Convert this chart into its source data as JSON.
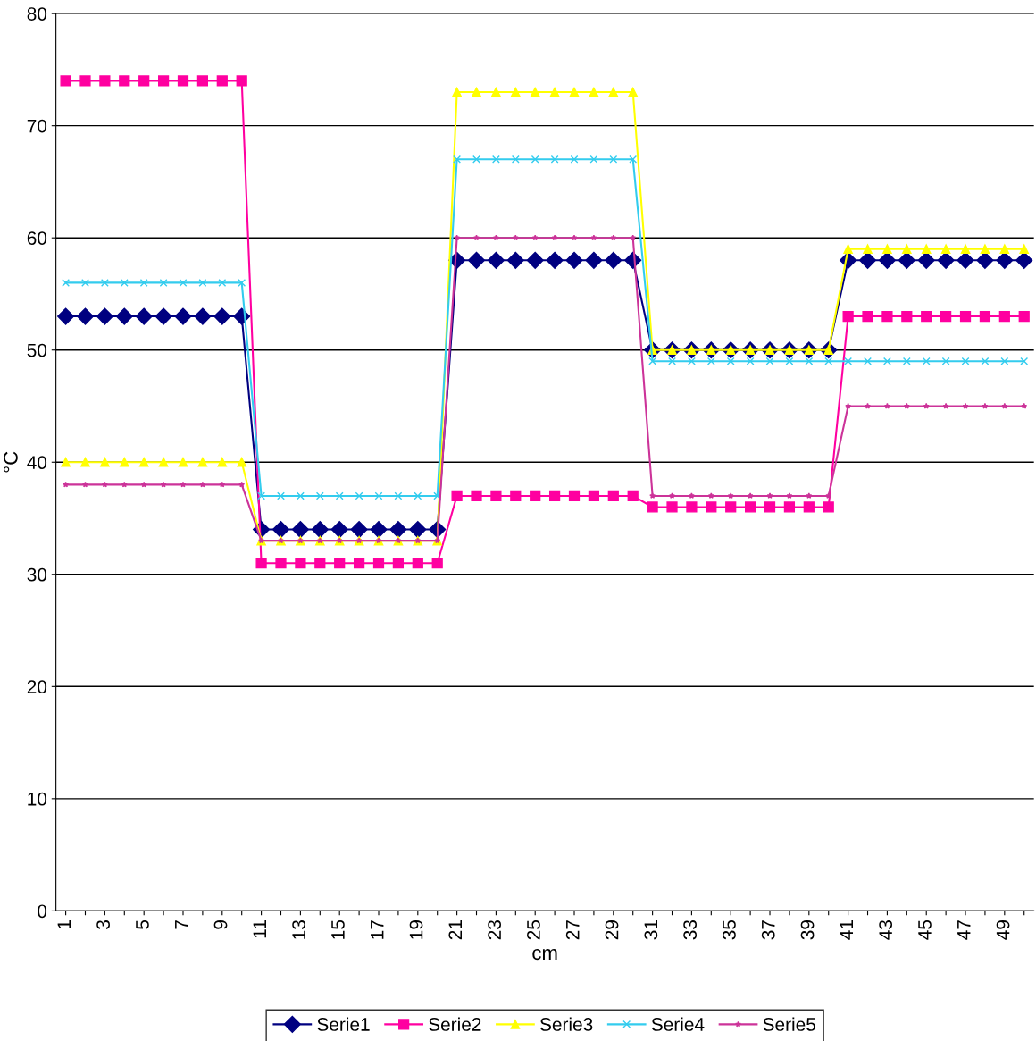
{
  "chart_data": {
    "type": "line",
    "xlabel": "cm",
    "ylabel": "°C",
    "categories": [
      "1",
      null,
      "3",
      null,
      "5",
      null,
      "7",
      null,
      "9",
      null,
      "11",
      null,
      "13",
      null,
      "15",
      null,
      "17",
      null,
      "19",
      null,
      "21",
      null,
      "23",
      null,
      "25",
      null,
      "27",
      null,
      "29",
      null,
      "31",
      null,
      "33",
      null,
      "35",
      null,
      "37",
      null,
      "39",
      null,
      "41",
      null,
      "43",
      null,
      "45",
      null,
      "47",
      null,
      "49",
      null
    ],
    "series": [
      {
        "name": "Serie1",
        "color": "#000080",
        "marker": "diamond",
        "values": [
          53,
          53,
          53,
          53,
          53,
          53,
          53,
          53,
          53,
          53,
          34,
          34,
          34,
          34,
          34,
          34,
          34,
          34,
          34,
          34,
          58,
          58,
          58,
          58,
          58,
          58,
          58,
          58,
          58,
          58,
          50,
          50,
          50,
          50,
          50,
          50,
          50,
          50,
          50,
          50,
          58,
          58,
          58,
          58,
          58,
          58,
          58,
          58,
          58,
          58
        ]
      },
      {
        "name": "Serie2",
        "color": "#ff00a0",
        "marker": "square",
        "values": [
          74,
          74,
          74,
          74,
          74,
          74,
          74,
          74,
          74,
          74,
          31,
          31,
          31,
          31,
          31,
          31,
          31,
          31,
          31,
          31,
          37,
          37,
          37,
          37,
          37,
          37,
          37,
          37,
          37,
          37,
          36,
          36,
          36,
          36,
          36,
          36,
          36,
          36,
          36,
          36,
          53,
          53,
          53,
          53,
          53,
          53,
          53,
          53,
          53,
          53
        ]
      },
      {
        "name": "Serie3",
        "color": "#ffff00",
        "marker": "triangle",
        "values": [
          40,
          40,
          40,
          40,
          40,
          40,
          40,
          40,
          40,
          40,
          33,
          33,
          33,
          33,
          33,
          33,
          33,
          33,
          33,
          33,
          73,
          73,
          73,
          73,
          73,
          73,
          73,
          73,
          73,
          73,
          50,
          50,
          50,
          50,
          50,
          50,
          50,
          50,
          50,
          50,
          59,
          59,
          59,
          59,
          59,
          59,
          59,
          59,
          59,
          59
        ]
      },
      {
        "name": "Serie4",
        "color": "#33ccee",
        "marker": "cross",
        "values": [
          56,
          56,
          56,
          56,
          56,
          56,
          56,
          56,
          56,
          56,
          37,
          37,
          37,
          37,
          37,
          37,
          37,
          37,
          37,
          37,
          67,
          67,
          67,
          67,
          67,
          67,
          67,
          67,
          67,
          67,
          49,
          49,
          49,
          49,
          49,
          49,
          49,
          49,
          49,
          49,
          49,
          49,
          49,
          49,
          49,
          49,
          49,
          49,
          49,
          49
        ]
      },
      {
        "name": "Serie5",
        "color": "#cc3399",
        "marker": "star",
        "values": [
          38,
          38,
          38,
          38,
          38,
          38,
          38,
          38,
          38,
          38,
          33,
          33,
          33,
          33,
          33,
          33,
          33,
          33,
          33,
          33,
          60,
          60,
          60,
          60,
          60,
          60,
          60,
          60,
          60,
          60,
          37,
          37,
          37,
          37,
          37,
          37,
          37,
          37,
          37,
          37,
          45,
          45,
          45,
          45,
          45,
          45,
          45,
          45,
          45,
          45
        ]
      }
    ],
    "ylim": [
      0,
      80
    ],
    "yticks": [
      0,
      10,
      20,
      30,
      40,
      50,
      60,
      70,
      80
    ],
    "grid": "y",
    "legend": "bottom"
  }
}
